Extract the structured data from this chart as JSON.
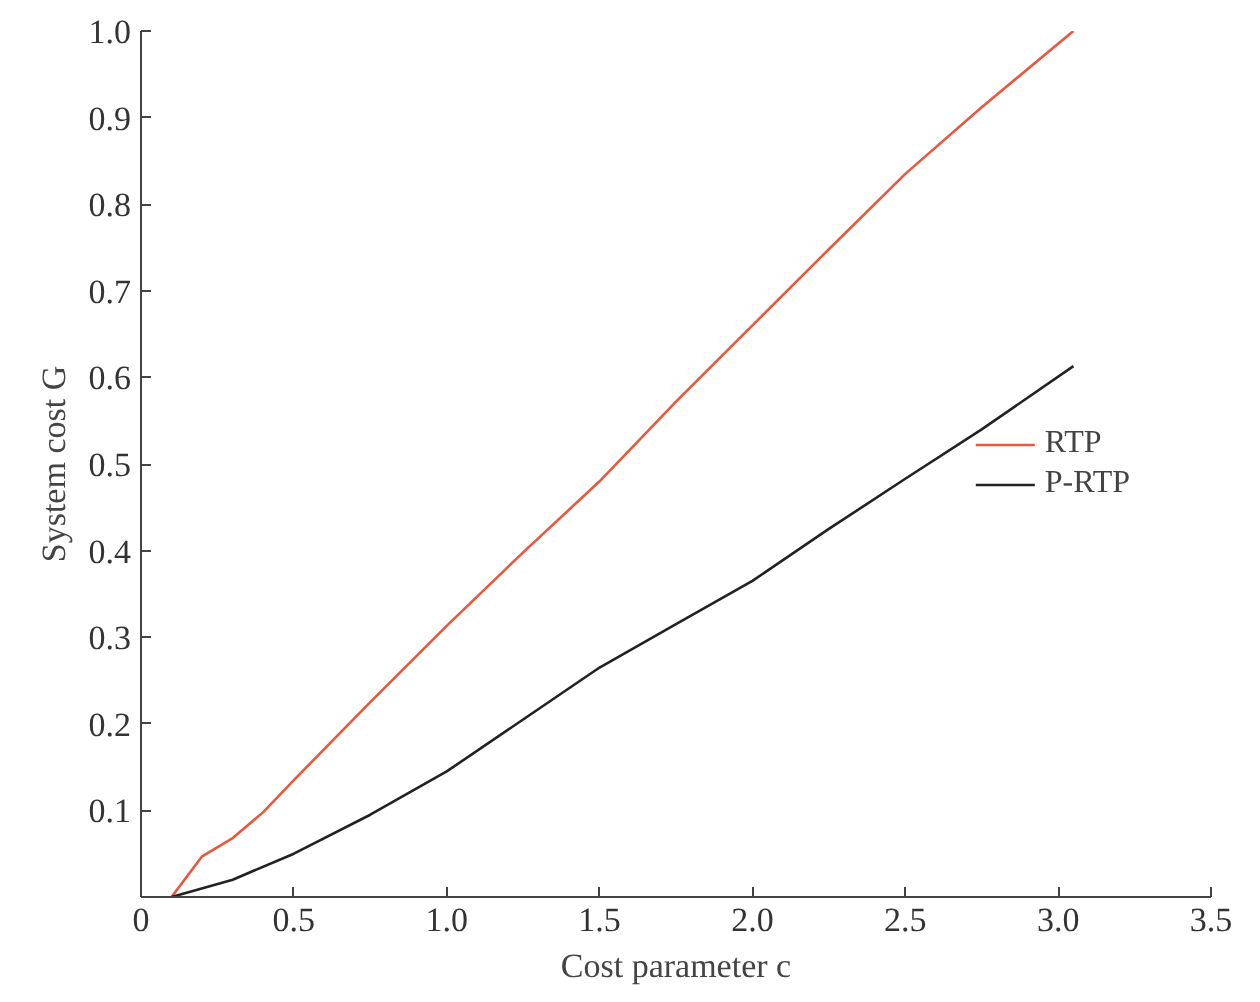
{
  "chart_data": {
    "type": "line",
    "xlabel": "Cost parameter c",
    "ylabel": "System cost G",
    "xlim": [
      0,
      3.5
    ],
    "ylim": [
      0,
      1.0
    ],
    "xticks": [
      0,
      0.5,
      {
        "value": 1,
        "label": "1.0"
      },
      1.5,
      {
        "value": 2,
        "label": "2.0"
      },
      2.5,
      {
        "value": 3,
        "label": "3.0"
      },
      3.5
    ],
    "yticks": [
      {
        "value": 0,
        "label": null
      },
      0.1,
      0.2,
      0.3,
      0.4,
      0.5,
      0.6,
      0.7,
      0.8,
      0.9,
      {
        "value": 1,
        "label": "1.0"
      }
    ],
    "grid": false,
    "legend": "right",
    "line_style": "solid",
    "series": [
      {
        "name": "RTP",
        "color": "#e8583f",
        "x": [
          0.1,
          0.2,
          0.3,
          0.4,
          0.5,
          0.75,
          1.0,
          1.25,
          1.5,
          1.75,
          2.0,
          2.25,
          2.5,
          2.75,
          3.05
        ],
        "values": [
          0,
          0.047,
          0.068,
          0.098,
          0.135,
          0.225,
          0.313,
          0.398,
          0.48,
          0.572,
          0.66,
          0.748,
          0.835,
          0.912,
          1.0
        ]
      },
      {
        "name": "P-RTP",
        "color": "#222222",
        "x": [
          0.1,
          0.3,
          0.5,
          0.75,
          1.0,
          1.25,
          1.5,
          1.75,
          2.0,
          2.25,
          2.5,
          2.75,
          3.05
        ],
        "values": [
          0,
          0.02,
          0.05,
          0.095,
          0.145,
          0.205,
          0.265,
          0.315,
          0.365,
          0.425,
          0.483,
          0.54,
          0.613
        ]
      }
    ]
  }
}
